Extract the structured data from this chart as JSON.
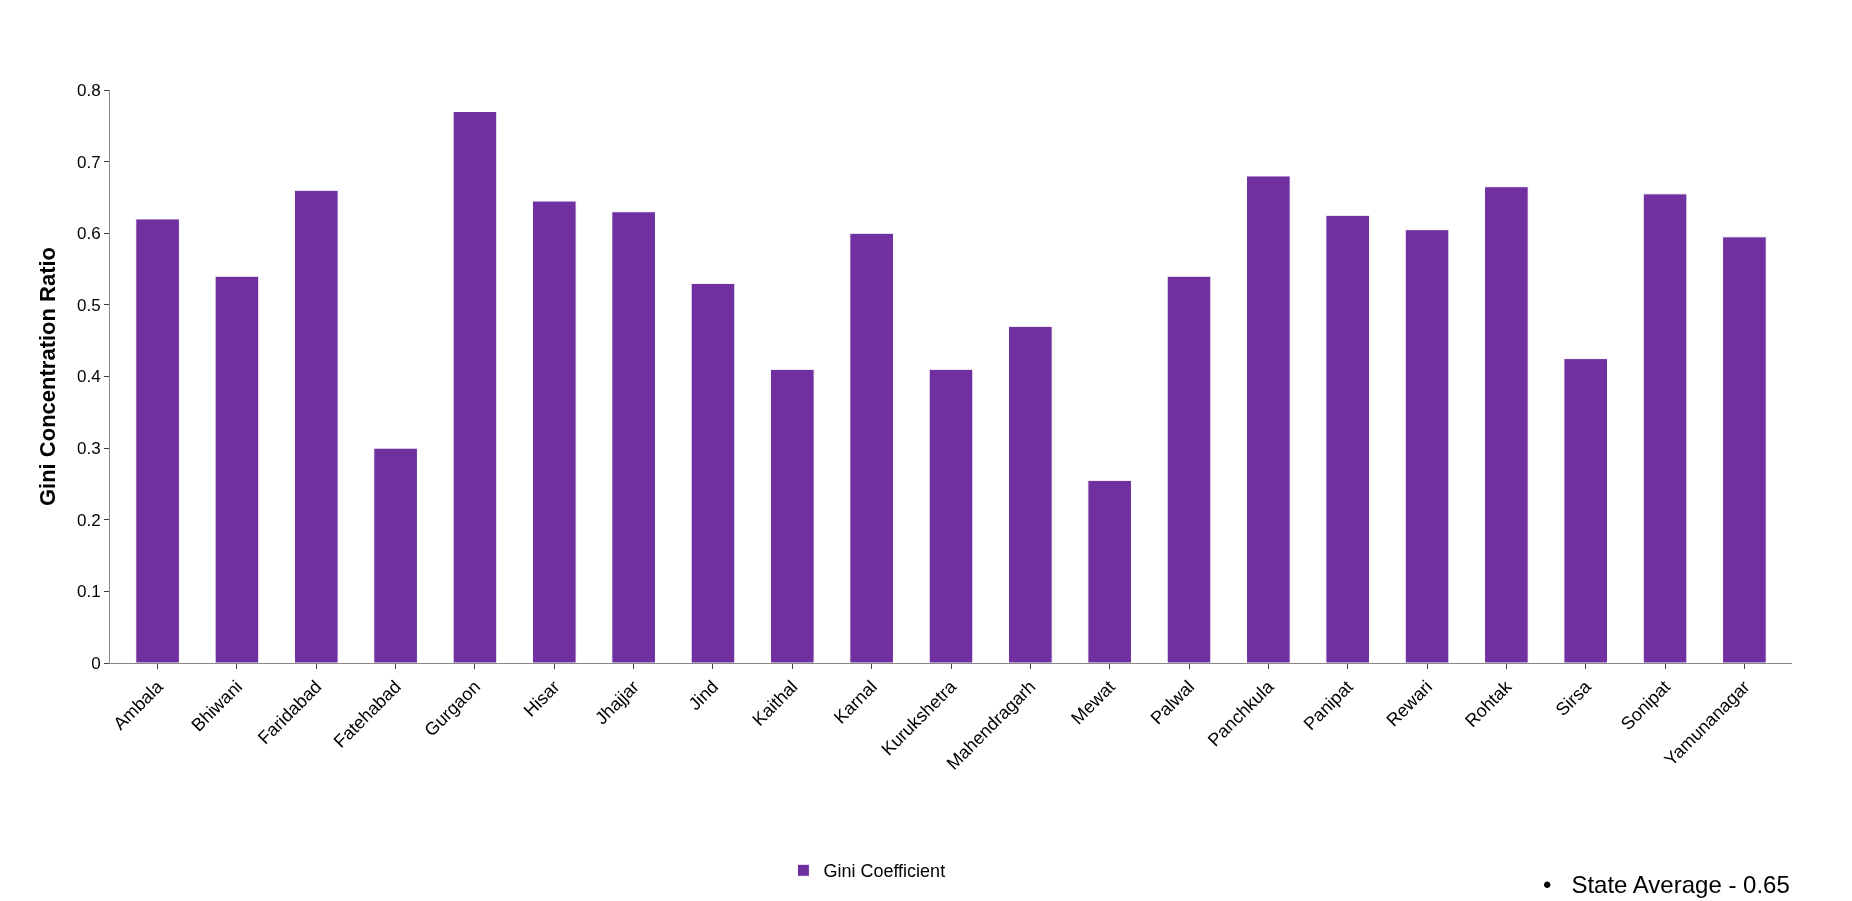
{
  "chart_data": {
    "type": "bar",
    "ylabel": "Gini Concentration Ratio",
    "categories": [
      "Ambala",
      "Bhiwani",
      "Faridabad",
      "Fatehabad",
      "Gurgaon",
      "Hisar",
      "Jhajjar",
      "Jind",
      "Kaithal",
      "Karnal",
      "Kurukshetra",
      "Mahendragarh",
      "Mewat",
      "Palwal",
      "Panchkula",
      "Panipat",
      "Rewari",
      "Rohtak",
      "Sirsa",
      "Sonipat",
      "Yamunanagar"
    ],
    "series": [
      {
        "name": "Gini Coefficient",
        "color": "#7030a0",
        "values": [
          0.62,
          0.54,
          0.66,
          0.3,
          0.77,
          0.645,
          0.63,
          0.53,
          0.41,
          0.6,
          0.41,
          0.47,
          0.255,
          0.54,
          0.68,
          0.625,
          0.605,
          0.665,
          0.425,
          0.655,
          0.595
        ]
      }
    ],
    "ylim": [
      0,
      0.8
    ],
    "yticks": [
      0,
      0.1,
      0.2,
      0.3,
      0.4,
      0.5,
      0.6,
      0.7,
      0.8
    ],
    "legend": "bottom",
    "annotations": [
      "•   State Average - 0.65"
    ]
  }
}
